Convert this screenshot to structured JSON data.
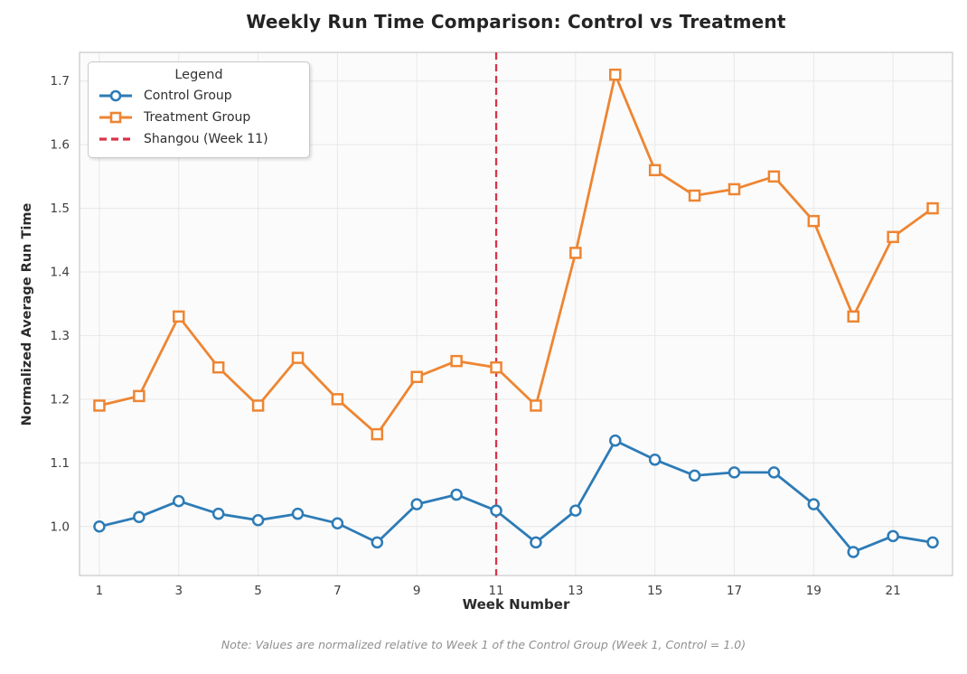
{
  "title": "Weekly Run Time Comparison: Control vs Treatment",
  "footnote": "Note: Values are normalized relative to Week 1 of the Control Group (Week 1, Control = 1.0)",
  "legend": {
    "title": "Legend",
    "items": [
      {
        "label": "Control Group",
        "marker": "circle"
      },
      {
        "label": "Treatment Group",
        "marker": "square"
      },
      {
        "label": "Shangou (Week 11)",
        "marker": "dashed-line"
      }
    ]
  },
  "colors": {
    "control": "#2d7bb6",
    "treatment": "#ee8532",
    "shangou": "#d93448",
    "marker_fill": "#ffffff",
    "grid": "#e8e8e8",
    "spine": "#c9c9c9",
    "plot_bg": "#fbfbfb",
    "tick_text": "#3d3d3d"
  },
  "chart_data": {
    "type": "line",
    "title": "Weekly Run Time Comparison: Control vs Treatment",
    "xlabel": "Week Number",
    "ylabel": "Normalized Average Run Time",
    "x": [
      1,
      2,
      3,
      4,
      5,
      6,
      7,
      8,
      9,
      10,
      11,
      12,
      13,
      14,
      15,
      16,
      17,
      18,
      19,
      20,
      21,
      22
    ],
    "series": [
      {
        "name": "Control Group",
        "color": "#2d7bb6",
        "marker": "circle",
        "values": [
          1.0,
          1.015,
          1.04,
          1.02,
          1.01,
          1.02,
          1.005,
          0.975,
          1.035,
          1.05,
          1.025,
          0.975,
          1.025,
          1.135,
          1.105,
          1.08,
          1.085,
          1.085,
          1.035,
          0.96,
          0.985,
          0.975
        ]
      },
      {
        "name": "Treatment Group",
        "color": "#ee8532",
        "marker": "square",
        "values": [
          1.19,
          1.205,
          1.33,
          1.25,
          1.19,
          1.265,
          1.2,
          1.145,
          1.235,
          1.26,
          1.25,
          1.19,
          1.43,
          1.71,
          1.56,
          1.52,
          1.53,
          1.55,
          1.48,
          1.33,
          1.455,
          1.5
        ]
      }
    ],
    "vline": {
      "x": 11,
      "label": "Shangou (Week 11)",
      "color": "#d93448",
      "style": "dashed"
    },
    "xticks": [
      1,
      3,
      5,
      7,
      9,
      11,
      13,
      15,
      17,
      19,
      21
    ],
    "yticks": [
      1.0,
      1.1,
      1.2,
      1.3,
      1.4,
      1.5,
      1.6,
      1.7
    ],
    "xlim": [
      0.5,
      22.5
    ],
    "ylim": [
      0.923,
      1.745
    ],
    "grid": true,
    "legend_position": "upper-left"
  }
}
